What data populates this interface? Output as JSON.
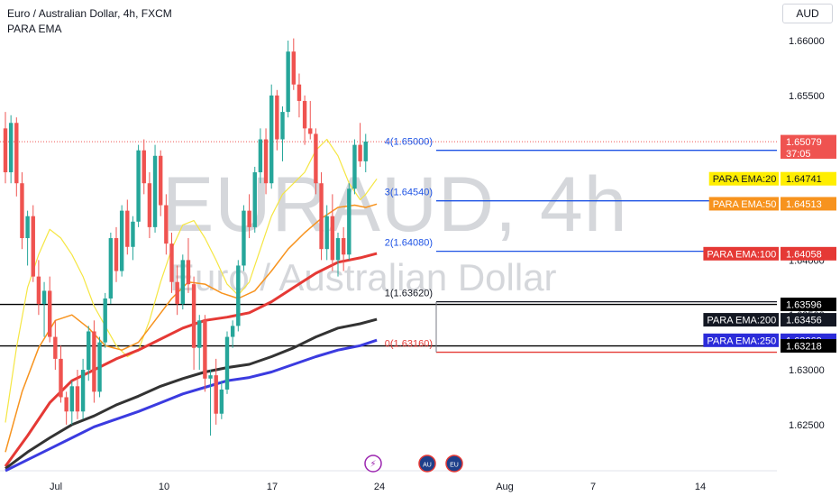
{
  "header": {
    "title": "Euro / Australian Dollar, 4h, FXCM",
    "indicator": "PARA EMA",
    "currency": "AUD"
  },
  "watermark": {
    "symbol": "EURAUD, 4h",
    "name": "Euro / Australian Dollar"
  },
  "chart_data": {
    "type": "candlestick",
    "title": "Euro / Australian Dollar, 4h, FXCM",
    "x_tick_labels": [
      "Jul",
      "10",
      "17",
      "24",
      "Aug",
      "7",
      "14"
    ],
    "y_tick_labels": [
      "1.66000",
      "1.65500",
      "1.65000",
      "1.64500",
      "1.64000",
      "1.63500",
      "1.63000",
      "1.62500"
    ],
    "y_ticks": [
      1.66,
      1.655,
      1.65,
      1.645,
      1.64,
      1.635,
      1.63,
      1.625
    ],
    "ylim": [
      1.6208,
      1.6637
    ],
    "last_price": 1.65079,
    "countdown": "37:05",
    "levels": [
      {
        "label": "4(1.65000)",
        "price": 1.65,
        "color": "#1e53e5"
      },
      {
        "label": "3(1.64540)",
        "price": 1.6454,
        "color": "#1e53e5"
      },
      {
        "label": "2(1.64080)",
        "price": 1.6408,
        "color": "#1e53e5"
      },
      {
        "label": "1(1.63620)",
        "price": 1.6362,
        "color": "#131722"
      },
      {
        "label": "0(1.63160)",
        "price": 1.6316,
        "color": "#e53935"
      }
    ],
    "horizontal_lines": [
      {
        "price": 1.63596,
        "color": "#000000"
      },
      {
        "price": 1.63218,
        "color": "#000000"
      }
    ],
    "price_tags": [
      {
        "value": "1.65079",
        "price": 1.65079,
        "bg": "#ef5350",
        "fg": "#ffffff"
      },
      {
        "value": "1.64741",
        "price": 1.64741,
        "bg": "#ffee00",
        "fg": "#131722",
        "name": "PARA EMA:20"
      },
      {
        "value": "1.64513",
        "price": 1.64513,
        "bg": "#f7931e",
        "fg": "#ffffff",
        "name": "PARA EMA:50"
      },
      {
        "value": "1.64058",
        "price": 1.64058,
        "bg": "#e53935",
        "fg": "#ffffff",
        "name": "PARA EMA:100"
      },
      {
        "value": "1.63596",
        "price": 1.63596,
        "bg": "#000000",
        "fg": "#ffffff"
      },
      {
        "value": "1.63456",
        "price": 1.63456,
        "bg": "#131722",
        "fg": "#ffffff",
        "name": "PARA EMA:200"
      },
      {
        "value": "1.63269",
        "price": 1.63269,
        "bg": "#2b2bd9",
        "fg": "#ffffff",
        "name": "PARA EMA:250"
      },
      {
        "value": "1.63218",
        "price": 1.63218,
        "bg": "#000000",
        "fg": "#ffffff"
      }
    ],
    "ema_series": [
      {
        "name": "PARA EMA:20",
        "color": "#f5e642",
        "points": [
          [
            0,
            1.6252
          ],
          [
            2,
            1.632
          ],
          [
            4,
            1.6375
          ],
          [
            6,
            1.6405
          ],
          [
            8,
            1.6428
          ],
          [
            10,
            1.642
          ],
          [
            12,
            1.6405
          ],
          [
            14,
            1.6385
          ],
          [
            16,
            1.6358
          ],
          [
            18,
            1.634
          ],
          [
            20,
            1.6322
          ],
          [
            22,
            1.6312
          ],
          [
            24,
            1.6318
          ],
          [
            26,
            1.6345
          ],
          [
            28,
            1.638
          ],
          [
            30,
            1.641
          ],
          [
            32,
            1.6432
          ],
          [
            34,
            1.6436
          ],
          [
            36,
            1.642
          ],
          [
            38,
            1.64
          ],
          [
            40,
            1.6378
          ],
          [
            42,
            1.6368
          ],
          [
            44,
            1.638
          ],
          [
            46,
            1.641
          ],
          [
            48,
            1.644
          ],
          [
            50,
            1.646
          ],
          [
            52,
            1.647
          ],
          [
            54,
            1.648
          ],
          [
            56,
            1.65
          ],
          [
            58,
            1.651
          ],
          [
            60,
            1.6495
          ],
          [
            62,
            1.647
          ],
          [
            64,
            1.6455
          ],
          [
            65,
            1.646
          ],
          [
            67,
            1.6474
          ]
        ]
      },
      {
        "name": "PARA EMA:50",
        "color": "#f7931e",
        "points": [
          [
            0,
            1.6225
          ],
          [
            3,
            1.628
          ],
          [
            6,
            1.632
          ],
          [
            9,
            1.6345
          ],
          [
            12,
            1.635
          ],
          [
            15,
            1.6338
          ],
          [
            18,
            1.6322
          ],
          [
            21,
            1.6318
          ],
          [
            24,
            1.6325
          ],
          [
            27,
            1.6345
          ],
          [
            30,
            1.6365
          ],
          [
            33,
            1.638
          ],
          [
            36,
            1.6378
          ],
          [
            39,
            1.637
          ],
          [
            42,
            1.6365
          ],
          [
            45,
            1.6372
          ],
          [
            48,
            1.639
          ],
          [
            51,
            1.641
          ],
          [
            54,
            1.6425
          ],
          [
            57,
            1.6438
          ],
          [
            60,
            1.6448
          ],
          [
            63,
            1.645
          ],
          [
            65,
            1.6448
          ],
          [
            67,
            1.6451
          ]
        ]
      },
      {
        "name": "PARA EMA:100",
        "color": "#e53935",
        "points": [
          [
            0,
            1.6212
          ],
          [
            4,
            1.624
          ],
          [
            8,
            1.627
          ],
          [
            12,
            1.629
          ],
          [
            16,
            1.63
          ],
          [
            20,
            1.631
          ],
          [
            24,
            1.6318
          ],
          [
            28,
            1.6328
          ],
          [
            32,
            1.6338
          ],
          [
            36,
            1.6345
          ],
          [
            40,
            1.6348
          ],
          [
            44,
            1.6352
          ],
          [
            48,
            1.6362
          ],
          [
            52,
            1.6375
          ],
          [
            56,
            1.6388
          ],
          [
            60,
            1.6398
          ],
          [
            64,
            1.6402
          ],
          [
            67,
            1.6406
          ]
        ]
      },
      {
        "name": "PARA EMA:200",
        "color": "#333333",
        "points": [
          [
            0,
            1.621
          ],
          [
            4,
            1.6225
          ],
          [
            8,
            1.6238
          ],
          [
            12,
            1.625
          ],
          [
            16,
            1.6258
          ],
          [
            20,
            1.6268
          ],
          [
            24,
            1.6276
          ],
          [
            28,
            1.6285
          ],
          [
            32,
            1.6292
          ],
          [
            36,
            1.6298
          ],
          [
            40,
            1.6302
          ],
          [
            44,
            1.6305
          ],
          [
            48,
            1.6312
          ],
          [
            52,
            1.632
          ],
          [
            56,
            1.633
          ],
          [
            60,
            1.6338
          ],
          [
            64,
            1.6342
          ],
          [
            67,
            1.6346
          ]
        ]
      },
      {
        "name": "PARA EMA:250",
        "color": "#3b3be0",
        "points": [
          [
            0,
            1.6208
          ],
          [
            4,
            1.6218
          ],
          [
            8,
            1.6228
          ],
          [
            12,
            1.6238
          ],
          [
            16,
            1.6248
          ],
          [
            20,
            1.6255
          ],
          [
            24,
            1.6262
          ],
          [
            28,
            1.627
          ],
          [
            32,
            1.6278
          ],
          [
            36,
            1.6284
          ],
          [
            40,
            1.629
          ],
          [
            44,
            1.6293
          ],
          [
            48,
            1.6298
          ],
          [
            52,
            1.6305
          ],
          [
            56,
            1.6312
          ],
          [
            60,
            1.6318
          ],
          [
            64,
            1.6322
          ],
          [
            67,
            1.6327
          ]
        ]
      }
    ],
    "candles": [
      [
        1.652,
        1.6535,
        1.647,
        1.648
      ],
      [
        1.648,
        1.6532,
        1.647,
        1.6525
      ],
      [
        1.6525,
        1.653,
        1.6458,
        1.647
      ],
      [
        1.647,
        1.648,
        1.641,
        1.642
      ],
      [
        1.642,
        1.6445,
        1.6395,
        1.644
      ],
      [
        1.644,
        1.645,
        1.638,
        1.6385
      ],
      [
        1.6385,
        1.64,
        1.635,
        1.636
      ],
      [
        1.636,
        1.638,
        1.633,
        1.6372
      ],
      [
        1.6372,
        1.6385,
        1.6325,
        1.633
      ],
      [
        1.633,
        1.6345,
        1.63,
        1.631
      ],
      [
        1.631,
        1.6322,
        1.627,
        1.6275
      ],
      [
        1.6275,
        1.628,
        1.625,
        1.6262
      ],
      [
        1.6262,
        1.629,
        1.625,
        1.6285
      ],
      [
        1.6285,
        1.63,
        1.6255,
        1.6262
      ],
      [
        1.6262,
        1.631,
        1.6255,
        1.63
      ],
      [
        1.63,
        1.634,
        1.629,
        1.6335
      ],
      [
        1.6335,
        1.6345,
        1.627,
        1.628
      ],
      [
        1.628,
        1.633,
        1.6275,
        1.6325
      ],
      [
        1.6325,
        1.637,
        1.632,
        1.6365
      ],
      [
        1.6365,
        1.6425,
        1.636,
        1.642
      ],
      [
        1.642,
        1.643,
        1.638,
        1.639
      ],
      [
        1.639,
        1.645,
        1.6385,
        1.6445
      ],
      [
        1.6445,
        1.6455,
        1.6405,
        1.6412
      ],
      [
        1.6412,
        1.644,
        1.64,
        1.6435
      ],
      [
        1.6435,
        1.6505,
        1.643,
        1.65
      ],
      [
        1.65,
        1.651,
        1.646,
        1.647
      ],
      [
        1.647,
        1.648,
        1.642,
        1.643
      ],
      [
        1.643,
        1.6505,
        1.6425,
        1.6495
      ],
      [
        1.6495,
        1.65,
        1.644,
        1.645
      ],
      [
        1.645,
        1.646,
        1.6405,
        1.6415
      ],
      [
        1.6415,
        1.6425,
        1.637,
        1.638
      ],
      [
        1.638,
        1.6395,
        1.635,
        1.636
      ],
      [
        1.636,
        1.6405,
        1.6355,
        1.64
      ],
      [
        1.64,
        1.642,
        1.637,
        1.6378
      ],
      [
        1.6378,
        1.6385,
        1.63,
        1.632
      ],
      [
        1.632,
        1.635,
        1.63,
        1.6345
      ],
      [
        1.6345,
        1.635,
        1.628,
        1.6292
      ],
      [
        1.6292,
        1.63,
        1.624,
        1.6295
      ],
      [
        1.6295,
        1.631,
        1.625,
        1.626
      ],
      [
        1.626,
        1.629,
        1.6255,
        1.6282
      ],
      [
        1.6282,
        1.6335,
        1.6278,
        1.633
      ],
      [
        1.633,
        1.6345,
        1.632,
        1.634
      ],
      [
        1.634,
        1.64,
        1.6335,
        1.6395
      ],
      [
        1.6395,
        1.645,
        1.639,
        1.6445
      ],
      [
        1.6445,
        1.646,
        1.642,
        1.643
      ],
      [
        1.643,
        1.6485,
        1.6425,
        1.648
      ],
      [
        1.648,
        1.652,
        1.647,
        1.651
      ],
      [
        1.651,
        1.652,
        1.646,
        1.647
      ],
      [
        1.647,
        1.656,
        1.6465,
        1.655
      ],
      [
        1.655,
        1.6555,
        1.65,
        1.651
      ],
      [
        1.651,
        1.654,
        1.649,
        1.6535
      ],
      [
        1.6535,
        1.66,
        1.653,
        1.659
      ],
      [
        1.659,
        1.6602,
        1.6555,
        1.656
      ],
      [
        1.656,
        1.657,
        1.653,
        1.6545
      ],
      [
        1.6545,
        1.655,
        1.6505,
        1.652
      ],
      [
        1.652,
        1.6545,
        1.651,
        1.6515
      ],
      [
        1.6515,
        1.652,
        1.646,
        1.647
      ],
      [
        1.647,
        1.648,
        1.64,
        1.641
      ],
      [
        1.641,
        1.645,
        1.64,
        1.644
      ],
      [
        1.644,
        1.646,
        1.639,
        1.64
      ],
      [
        1.64,
        1.6425,
        1.6385,
        1.642
      ],
      [
        1.642,
        1.643,
        1.639,
        1.6405
      ],
      [
        1.6405,
        1.647,
        1.64,
        1.6465
      ],
      [
        1.6465,
        1.651,
        1.646,
        1.6505
      ],
      [
        1.6505,
        1.6525,
        1.6485,
        1.649
      ],
      [
        1.649,
        1.6515,
        1.648,
        1.6508
      ]
    ]
  },
  "x_axis_events": [
    {
      "name": "lightning-icon",
      "label": "⚡"
    },
    {
      "name": "au-flag-icon",
      "label": "AU"
    },
    {
      "name": "eu-flag-icon",
      "label": "EU"
    }
  ]
}
